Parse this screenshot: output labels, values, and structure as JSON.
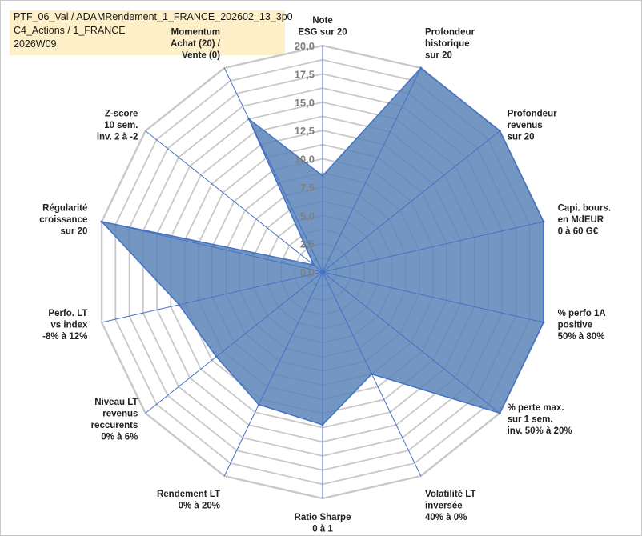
{
  "header": {
    "line1": "PTF_06_Val / ADAMRendement_1_FRANCE_202602_13_3p0",
    "line2": "C4_Actions / 1_FRANCE",
    "line3": "2026W09"
  },
  "chart_data": {
    "type": "radar",
    "title": "",
    "rmin": 0,
    "rmax": 20,
    "ticks": [
      "0,0",
      "2,5",
      "5,0",
      "7,5",
      "10,0",
      "12,5",
      "15,0",
      "17,5",
      "20,0"
    ],
    "fill_color": "#5b84b8",
    "line_color": "#4472c4",
    "grid_color": "#c8c8c8",
    "categories": [
      {
        "lines": [
          "Note",
          "ESG sur 20"
        ],
        "value": 8.5
      },
      {
        "lines": [
          "Profondeur",
          "historique",
          "sur 20"
        ],
        "value": 20
      },
      {
        "lines": [
          "Profondeur",
          "revenus",
          "sur 20"
        ],
        "value": 20
      },
      {
        "lines": [
          "Capi. bours.",
          "en MdEUR",
          "0 à 60 G€"
        ],
        "value": 20
      },
      {
        "lines": [
          "% perfo 1A",
          "positive",
          "50% à 80%"
        ],
        "value": 20
      },
      {
        "lines": [
          "% perte max.",
          "sur 1 sem.",
          "inv. 50% à 20%"
        ],
        "value": 20
      },
      {
        "lines": [
          "Volatilité LT",
          "inversée",
          "40% à 0%"
        ],
        "value": 10
      },
      {
        "lines": [
          "Ratio Sharpe",
          "0 à 1"
        ],
        "value": 13.5
      },
      {
        "lines": [
          "Rendement LT",
          "0% à 20%"
        ],
        "value": 13
      },
      {
        "lines": [
          "Niveau LT",
          "revenus",
          "reccurents",
          "0% à 6%"
        ],
        "value": 12
      },
      {
        "lines": [
          "Perfo. LT",
          "vs index",
          "-8% à 12%"
        ],
        "value": 13
      },
      {
        "lines": [
          "Régularité",
          "croissance",
          "sur 20"
        ],
        "value": 20
      },
      {
        "lines": [
          "Z-score",
          "10 sem.",
          "inv. 2 à -2"
        ],
        "value": 1
      },
      {
        "lines": [
          "Momentum",
          "Achat (20) /",
          "Vente (0)"
        ],
        "value": 15,
        "muted_first_line": true
      }
    ]
  }
}
